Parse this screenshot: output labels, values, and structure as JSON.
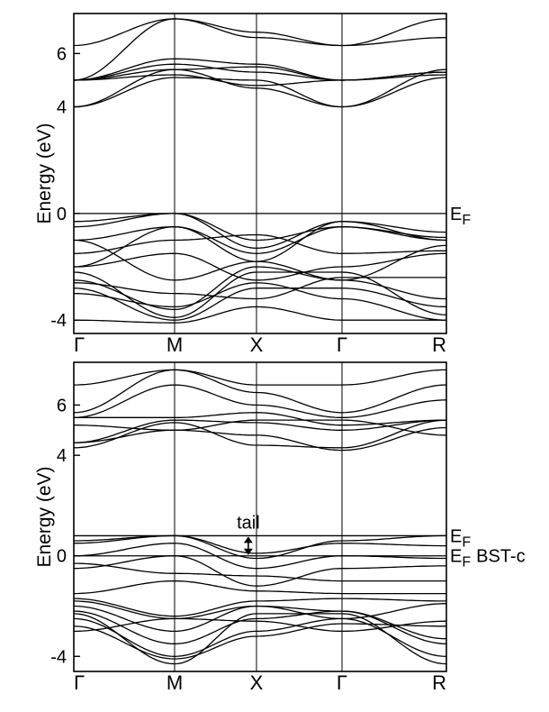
{
  "chart_data": [
    {
      "type": "line",
      "ylabel": "Energy (eV)",
      "xlabel": "",
      "kpoints": [
        "Γ",
        "M",
        "X",
        "Γ",
        "R"
      ],
      "ylim": [
        -4.5,
        7.5
      ],
      "yticks": [
        -4,
        0,
        4,
        6
      ],
      "grid": false,
      "markers": [
        {
          "label": "E",
          "sub": "F",
          "energy": 0.0
        }
      ],
      "series": [
        {
          "values": [
            6.3,
            7.3,
            6.6,
            6.3,
            7.3
          ]
        },
        {
          "values": [
            5.0,
            7.3,
            6.8,
            6.3,
            6.6
          ]
        },
        {
          "values": [
            5.0,
            5.6,
            5.3,
            5.0,
            5.2
          ]
        },
        {
          "values": [
            5.0,
            5.4,
            5.5,
            5.0,
            5.3
          ]
        },
        {
          "values": [
            5.0,
            5.2,
            4.8,
            5.0,
            5.3
          ]
        },
        {
          "values": [
            4.0,
            5.4,
            4.7,
            4.0,
            5.1
          ]
        },
        {
          "values": [
            4.0,
            5.1,
            5.0,
            4.0,
            5.4
          ]
        },
        {
          "values": [
            5.0,
            5.8,
            5.6,
            5.0,
            5.3
          ]
        },
        {
          "values": [
            -0.3,
            0.0,
            -1.3,
            -0.3,
            -0.7
          ]
        },
        {
          "values": [
            -0.5,
            0.0,
            -1.0,
            -0.5,
            -0.9
          ]
        },
        {
          "values": [
            -1.0,
            -0.5,
            -1.5,
            -0.5,
            -1.0
          ]
        },
        {
          "values": [
            -1.5,
            -1.0,
            -0.8,
            -1.5,
            -1.4
          ]
        },
        {
          "values": [
            -2.0,
            -0.5,
            -1.8,
            -0.3,
            -1.0
          ]
        },
        {
          "values": [
            -2.0,
            -1.5,
            -2.5,
            -2.0,
            -1.5
          ]
        },
        {
          "values": [
            -1.0,
            -2.5,
            -1.8,
            -2.5,
            -1.2
          ]
        },
        {
          "values": [
            -2.5,
            -3.6,
            -2.0,
            -2.5,
            -3.2
          ]
        },
        {
          "values": [
            -2.8,
            -4.0,
            -2.8,
            -2.8,
            -3.5
          ]
        },
        {
          "values": [
            -3.0,
            -3.5,
            -2.6,
            -3.2,
            -4.0
          ]
        },
        {
          "values": [
            -2.2,
            -3.9,
            -2.2,
            -2.2,
            -3.8
          ]
        },
        {
          "values": [
            -4.0,
            -4.1,
            -3.5,
            -4.0,
            -4.0
          ]
        },
        {
          "values": [
            -2.6,
            -3.0,
            -3.2,
            -2.4,
            -2.4
          ]
        }
      ]
    },
    {
      "type": "line",
      "ylabel": "Energy (eV)",
      "xlabel": "",
      "kpoints": [
        "Γ",
        "M",
        "X",
        "Γ",
        "R"
      ],
      "ylim": [
        -4.6,
        7.7
      ],
      "yticks": [
        -4,
        0,
        4,
        6
      ],
      "grid": false,
      "markers": [
        {
          "label": "E",
          "sub": "F",
          "energy": 0.8,
          "suffix": ""
        },
        {
          "label": "E",
          "sub": "F",
          "energy": 0.0,
          "suffix": "BST-c"
        }
      ],
      "annotation": {
        "text": "tail",
        "k": 2.0,
        "from": 0.8,
        "to": 0.0
      },
      "series": [
        {
          "values": [
            6.8,
            7.4,
            6.8,
            6.8,
            7.4
          ]
        },
        {
          "values": [
            5.7,
            7.4,
            6.5,
            5.7,
            6.8
          ]
        },
        {
          "values": [
            5.5,
            6.8,
            6.0,
            5.5,
            6.2
          ]
        },
        {
          "values": [
            5.5,
            5.5,
            5.7,
            5.2,
            5.4
          ]
        },
        {
          "values": [
            4.5,
            5.4,
            5.3,
            5.0,
            5.4
          ]
        },
        {
          "values": [
            4.3,
            5.3,
            4.4,
            4.3,
            5.4
          ]
        },
        {
          "values": [
            4.5,
            5.0,
            4.8,
            4.2,
            5.1
          ]
        },
        {
          "values": [
            5.2,
            5.0,
            5.4,
            5.4,
            4.8
          ]
        },
        {
          "values": [
            0.6,
            0.8,
            -0.1,
            0.6,
            0.8
          ]
        },
        {
          "values": [
            0.5,
            0.8,
            0.1,
            0.5,
            0.4
          ]
        },
        {
          "values": [
            0.0,
            0.5,
            -0.5,
            0.0,
            -0.1
          ]
        },
        {
          "values": [
            -0.5,
            0.0,
            -1.2,
            -0.5,
            -0.4
          ]
        },
        {
          "values": [
            -0.3,
            -0.7,
            -0.8,
            -1.0,
            -1.0
          ]
        },
        {
          "values": [
            -1.5,
            -1.0,
            -1.4,
            -1.5,
            -1.5
          ]
        },
        {
          "values": [
            -1.8,
            -2.5,
            -2.0,
            -2.5,
            -1.9
          ]
        },
        {
          "values": [
            -2.0,
            -3.0,
            -2.0,
            -2.2,
            -3.5
          ]
        },
        {
          "values": [
            -2.2,
            -3.5,
            -2.5,
            -2.2,
            -3.3
          ]
        },
        {
          "values": [
            -2.5,
            -4.0,
            -3.0,
            -2.5,
            -4.0
          ]
        },
        {
          "values": [
            -2.3,
            -4.3,
            -2.3,
            -2.3,
            -4.3
          ]
        },
        {
          "values": [
            -2.8,
            -4.1,
            -3.2,
            -2.7,
            -2.8
          ]
        },
        {
          "values": [
            -3.0,
            -2.5,
            -2.6,
            -3.0,
            -2.6
          ]
        },
        {
          "values": [
            -1.7,
            -2.4,
            -1.8,
            -1.7,
            -1.8
          ]
        }
      ]
    }
  ]
}
